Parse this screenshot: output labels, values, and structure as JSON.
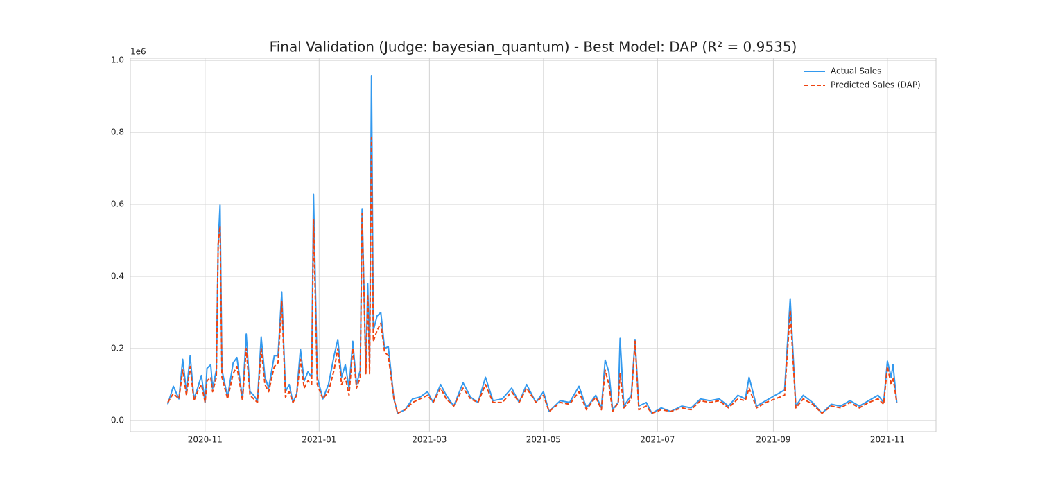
{
  "chart_data": {
    "type": "line",
    "title": "Final Validation (Judge: bayesian_quantum) - Best Model: DAP (R² = 0.9535)",
    "y_offset_label": "1e6",
    "x": [
      "2020-10-12",
      "2020-10-15",
      "2020-10-18",
      "2020-10-20",
      "2020-10-22",
      "2020-10-24",
      "2020-10-26",
      "2020-10-28",
      "2020-10-30",
      "2020-11-01",
      "2020-11-02",
      "2020-11-04",
      "2020-11-05",
      "2020-11-07",
      "2020-11-08",
      "2020-11-09",
      "2020-11-10",
      "2020-11-13",
      "2020-11-16",
      "2020-11-18",
      "2020-11-21",
      "2020-11-23",
      "2020-11-25",
      "2020-11-27",
      "2020-11-29",
      "2020-12-01",
      "2020-12-03",
      "2020-12-05",
      "2020-12-08",
      "2020-12-10",
      "2020-12-12",
      "2020-12-14",
      "2020-12-16",
      "2020-12-18",
      "2020-12-20",
      "2020-12-22",
      "2020-12-24",
      "2020-12-26",
      "2020-12-28",
      "2020-12-29",
      "2020-12-31",
      "2021-01-03",
      "2021-01-06",
      "2021-01-09",
      "2021-01-11",
      "2021-01-13",
      "2021-01-15",
      "2021-01-17",
      "2021-01-19",
      "2021-01-21",
      "2021-01-23",
      "2021-01-24",
      "2021-01-26",
      "2021-01-27",
      "2021-01-28",
      "2021-01-29",
      "2021-01-30",
      "2021-02-01",
      "2021-02-03",
      "2021-02-05",
      "2021-02-07",
      "2021-02-10",
      "2021-02-12",
      "2021-02-16",
      "2021-02-20",
      "2021-02-24",
      "2021-02-28",
      "2021-03-03",
      "2021-03-07",
      "2021-03-10",
      "2021-03-14",
      "2021-03-19",
      "2021-03-23",
      "2021-03-27",
      "2021-03-31",
      "2021-04-04",
      "2021-04-09",
      "2021-04-14",
      "2021-04-18",
      "2021-04-22",
      "2021-04-27",
      "2021-05-01",
      "2021-05-04",
      "2021-05-10",
      "2021-05-15",
      "2021-05-20",
      "2021-05-24",
      "2021-05-29",
      "2021-06-01",
      "2021-06-03",
      "2021-06-05",
      "2021-06-07",
      "2021-06-10",
      "2021-06-11",
      "2021-06-13",
      "2021-06-17",
      "2021-06-19",
      "2021-06-21",
      "2021-06-25",
      "2021-06-28",
      "2021-07-03",
      "2021-07-08",
      "2021-07-14",
      "2021-07-19",
      "2021-07-24",
      "2021-07-29",
      "2021-08-03",
      "2021-08-08",
      "2021-08-13",
      "2021-08-17",
      "2021-08-19",
      "2021-08-23",
      "2021-08-28",
      "2021-09-02",
      "2021-09-07",
      "2021-09-10",
      "2021-09-13",
      "2021-09-17",
      "2021-09-22",
      "2021-09-27",
      "2021-10-02",
      "2021-10-07",
      "2021-10-12",
      "2021-10-17",
      "2021-10-22",
      "2021-10-27",
      "2021-10-30",
      "2021-11-01",
      "2021-11-03",
      "2021-11-04",
      "2021-11-06"
    ],
    "series": [
      {
        "name": "Actual Sales",
        "color": "#3399ee",
        "linestyle": "solid",
        "values": [
          0.045,
          0.095,
          0.06,
          0.17,
          0.08,
          0.18,
          0.06,
          0.09,
          0.125,
          0.05,
          0.145,
          0.155,
          0.09,
          0.14,
          0.49,
          0.598,
          0.14,
          0.065,
          0.16,
          0.175,
          0.06,
          0.24,
          0.08,
          0.07,
          0.055,
          0.232,
          0.12,
          0.09,
          0.18,
          0.18,
          0.357,
          0.08,
          0.1,
          0.05,
          0.075,
          0.198,
          0.11,
          0.135,
          0.12,
          0.628,
          0.12,
          0.06,
          0.1,
          0.18,
          0.225,
          0.12,
          0.155,
          0.09,
          0.22,
          0.1,
          0.14,
          0.588,
          0.14,
          0.38,
          0.16,
          0.958,
          0.25,
          0.29,
          0.3,
          0.2,
          0.205,
          0.06,
          0.02,
          0.03,
          0.06,
          0.065,
          0.08,
          0.05,
          0.1,
          0.07,
          0.04,
          0.105,
          0.065,
          0.05,
          0.12,
          0.055,
          0.06,
          0.09,
          0.05,
          0.1,
          0.05,
          0.08,
          0.025,
          0.055,
          0.05,
          0.095,
          0.035,
          0.07,
          0.035,
          0.168,
          0.135,
          0.03,
          0.05,
          0.228,
          0.04,
          0.07,
          0.225,
          0.04,
          0.05,
          0.02,
          0.035,
          0.025,
          0.04,
          0.035,
          0.06,
          0.055,
          0.06,
          0.04,
          0.07,
          0.06,
          0.12,
          0.04,
          0.055,
          0.07,
          0.085,
          0.338,
          0.04,
          0.07,
          0.05,
          0.02,
          0.045,
          0.04,
          0.055,
          0.04,
          0.055,
          0.07,
          0.05,
          0.165,
          0.12,
          0.155,
          0.05
        ]
      },
      {
        "name": "Predicted Sales (DAP)",
        "color": "#ee4411",
        "linestyle": "dashed",
        "values": [
          0.05,
          0.075,
          0.06,
          0.14,
          0.07,
          0.15,
          0.055,
          0.08,
          0.1,
          0.05,
          0.11,
          0.12,
          0.08,
          0.12,
          0.49,
          0.54,
          0.12,
          0.06,
          0.13,
          0.15,
          0.055,
          0.2,
          0.07,
          0.06,
          0.05,
          0.2,
          0.1,
          0.08,
          0.15,
          0.16,
          0.33,
          0.065,
          0.08,
          0.05,
          0.07,
          0.17,
          0.09,
          0.11,
          0.1,
          0.56,
          0.1,
          0.06,
          0.08,
          0.14,
          0.2,
          0.1,
          0.12,
          0.07,
          0.2,
          0.09,
          0.12,
          0.575,
          0.13,
          0.35,
          0.13,
          0.785,
          0.22,
          0.25,
          0.27,
          0.19,
          0.18,
          0.06,
          0.02,
          0.03,
          0.05,
          0.06,
          0.07,
          0.05,
          0.09,
          0.06,
          0.04,
          0.09,
          0.06,
          0.05,
          0.1,
          0.05,
          0.05,
          0.08,
          0.05,
          0.09,
          0.05,
          0.07,
          0.025,
          0.05,
          0.045,
          0.08,
          0.03,
          0.065,
          0.03,
          0.14,
          0.1,
          0.025,
          0.05,
          0.13,
          0.035,
          0.06,
          0.22,
          0.03,
          0.04,
          0.02,
          0.03,
          0.025,
          0.035,
          0.03,
          0.055,
          0.05,
          0.055,
          0.035,
          0.06,
          0.055,
          0.09,
          0.035,
          0.05,
          0.06,
          0.07,
          0.305,
          0.035,
          0.06,
          0.045,
          0.02,
          0.04,
          0.035,
          0.05,
          0.035,
          0.05,
          0.06,
          0.045,
          0.15,
          0.1,
          0.12,
          0.05
        ]
      }
    ],
    "xlim": [
      "2020-09-22",
      "2021-11-27"
    ],
    "xticks": [
      {
        "value": "2020-11-01",
        "label": "2020-11"
      },
      {
        "value": "2021-01-01",
        "label": "2021-01"
      },
      {
        "value": "2021-03-01",
        "label": "2021-03"
      },
      {
        "value": "2021-05-01",
        "label": "2021-05"
      },
      {
        "value": "2021-07-01",
        "label": "2021-07"
      },
      {
        "value": "2021-09-01",
        "label": "2021-09"
      },
      {
        "value": "2021-11-01",
        "label": "2021-11"
      }
    ],
    "ylim": [
      -0.031,
      1.006
    ],
    "yticks": [
      {
        "value": 0,
        "label": "0.0"
      },
      0.2,
      0.4,
      0.6,
      0.8,
      {
        "value": 1,
        "label": "1.0"
      }
    ],
    "grid": true,
    "legend": "upper right"
  }
}
